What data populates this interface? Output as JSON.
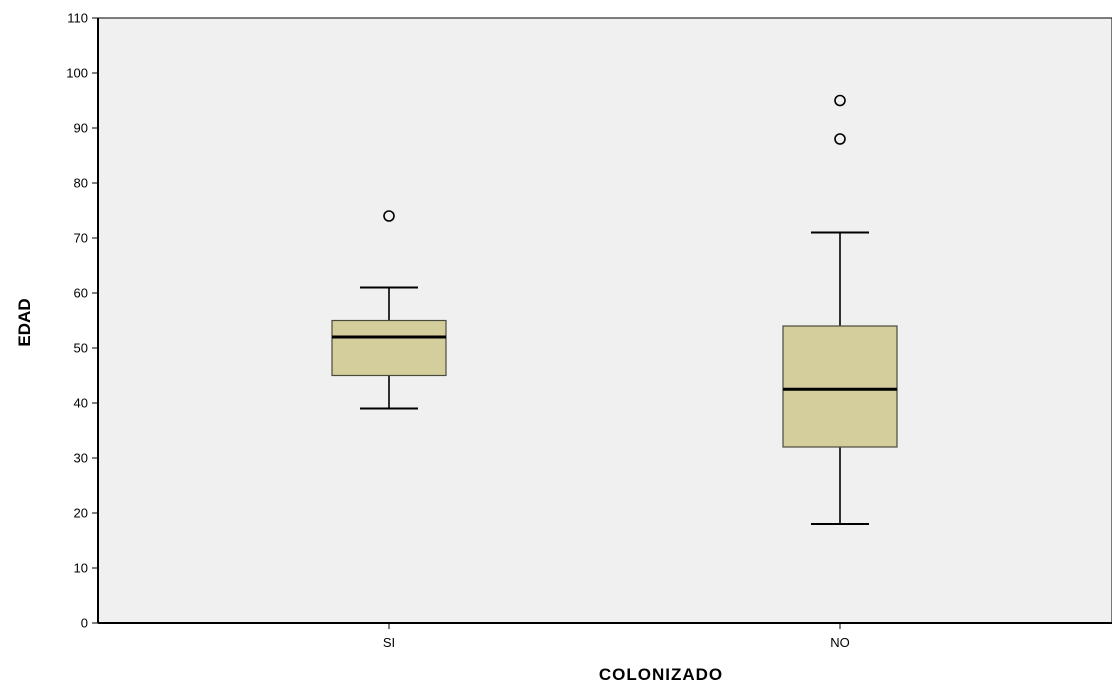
{
  "chart_data": {
    "type": "boxplot",
    "title": "",
    "xlabel": "COLONIZADO",
    "ylabel": "EDAD",
    "ylim": [
      0,
      110
    ],
    "yticks": [
      0,
      10,
      20,
      30,
      40,
      50,
      60,
      70,
      80,
      90,
      100,
      110
    ],
    "categories": [
      "SI",
      "NO"
    ],
    "boxes": [
      {
        "category": "SI",
        "whisker_low": 39,
        "q1": 45,
        "median": 52,
        "q3": 55,
        "whisker_high": 61,
        "outliers": [
          74
        ]
      },
      {
        "category": "NO",
        "whisker_low": 18,
        "q1": 32,
        "median": 42.5,
        "q3": 54,
        "whisker_high": 71,
        "outliers": [
          88,
          95
        ]
      }
    ],
    "grid": false,
    "colors": {
      "plot_background": "#f0f0f0",
      "box_fill": "#d3ce9c",
      "box_stroke": "#4b4b3c",
      "axis": "#000000"
    }
  }
}
